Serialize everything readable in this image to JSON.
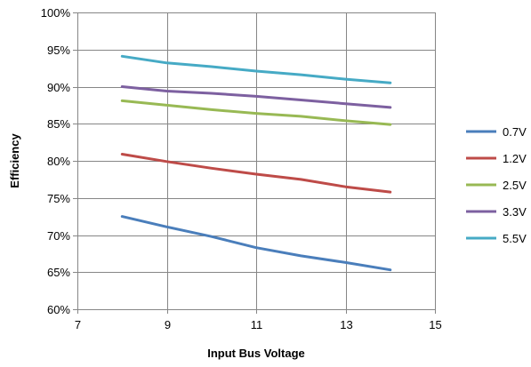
{
  "chart_data": {
    "type": "line",
    "title": "",
    "xlabel": "Input Bus Voltage",
    "ylabel": "Efficiency",
    "xlim": [
      7,
      15
    ],
    "ylim": [
      60,
      100
    ],
    "x_ticks": [
      7,
      9,
      11,
      13,
      15
    ],
    "x_tick_labels": [
      "7",
      "9",
      "11",
      "13",
      "15"
    ],
    "y_ticks": [
      60,
      65,
      70,
      75,
      80,
      85,
      90,
      95,
      100
    ],
    "y_tick_labels": [
      "60%",
      "65%",
      "70%",
      "75%",
      "80%",
      "85%",
      "90%",
      "95%",
      "100%"
    ],
    "grid": "major gridlines on both axes",
    "legend_position": "right",
    "series": [
      {
        "name": "0.7V",
        "color": "#4A7EBB",
        "x": [
          8,
          9,
          10,
          11,
          12,
          13,
          14
        ],
        "values": [
          72.5,
          71.1,
          69.8,
          68.3,
          67.2,
          66.3,
          65.3
        ]
      },
      {
        "name": "1.2V",
        "color": "#BE4B48",
        "x": [
          8,
          9,
          10,
          11,
          12,
          13,
          14
        ],
        "values": [
          80.9,
          79.9,
          79.0,
          78.2,
          77.5,
          76.5,
          75.8
        ]
      },
      {
        "name": "2.5V",
        "color": "#98B954",
        "x": [
          8,
          9,
          10,
          11,
          12,
          13,
          14
        ],
        "values": [
          88.1,
          87.5,
          86.9,
          86.4,
          86.0,
          85.4,
          84.9
        ]
      },
      {
        "name": "3.3V",
        "color": "#7D60A0",
        "x": [
          8,
          9,
          10,
          11,
          12,
          13,
          14
        ],
        "values": [
          90.0,
          89.4,
          89.1,
          88.7,
          88.2,
          87.7,
          87.2
        ]
      },
      {
        "name": "5.5V",
        "color": "#46AAC5",
        "x": [
          8,
          9,
          10,
          11,
          12,
          13,
          14
        ],
        "values": [
          94.1,
          93.2,
          92.7,
          92.1,
          91.6,
          91.0,
          90.5
        ]
      }
    ]
  }
}
